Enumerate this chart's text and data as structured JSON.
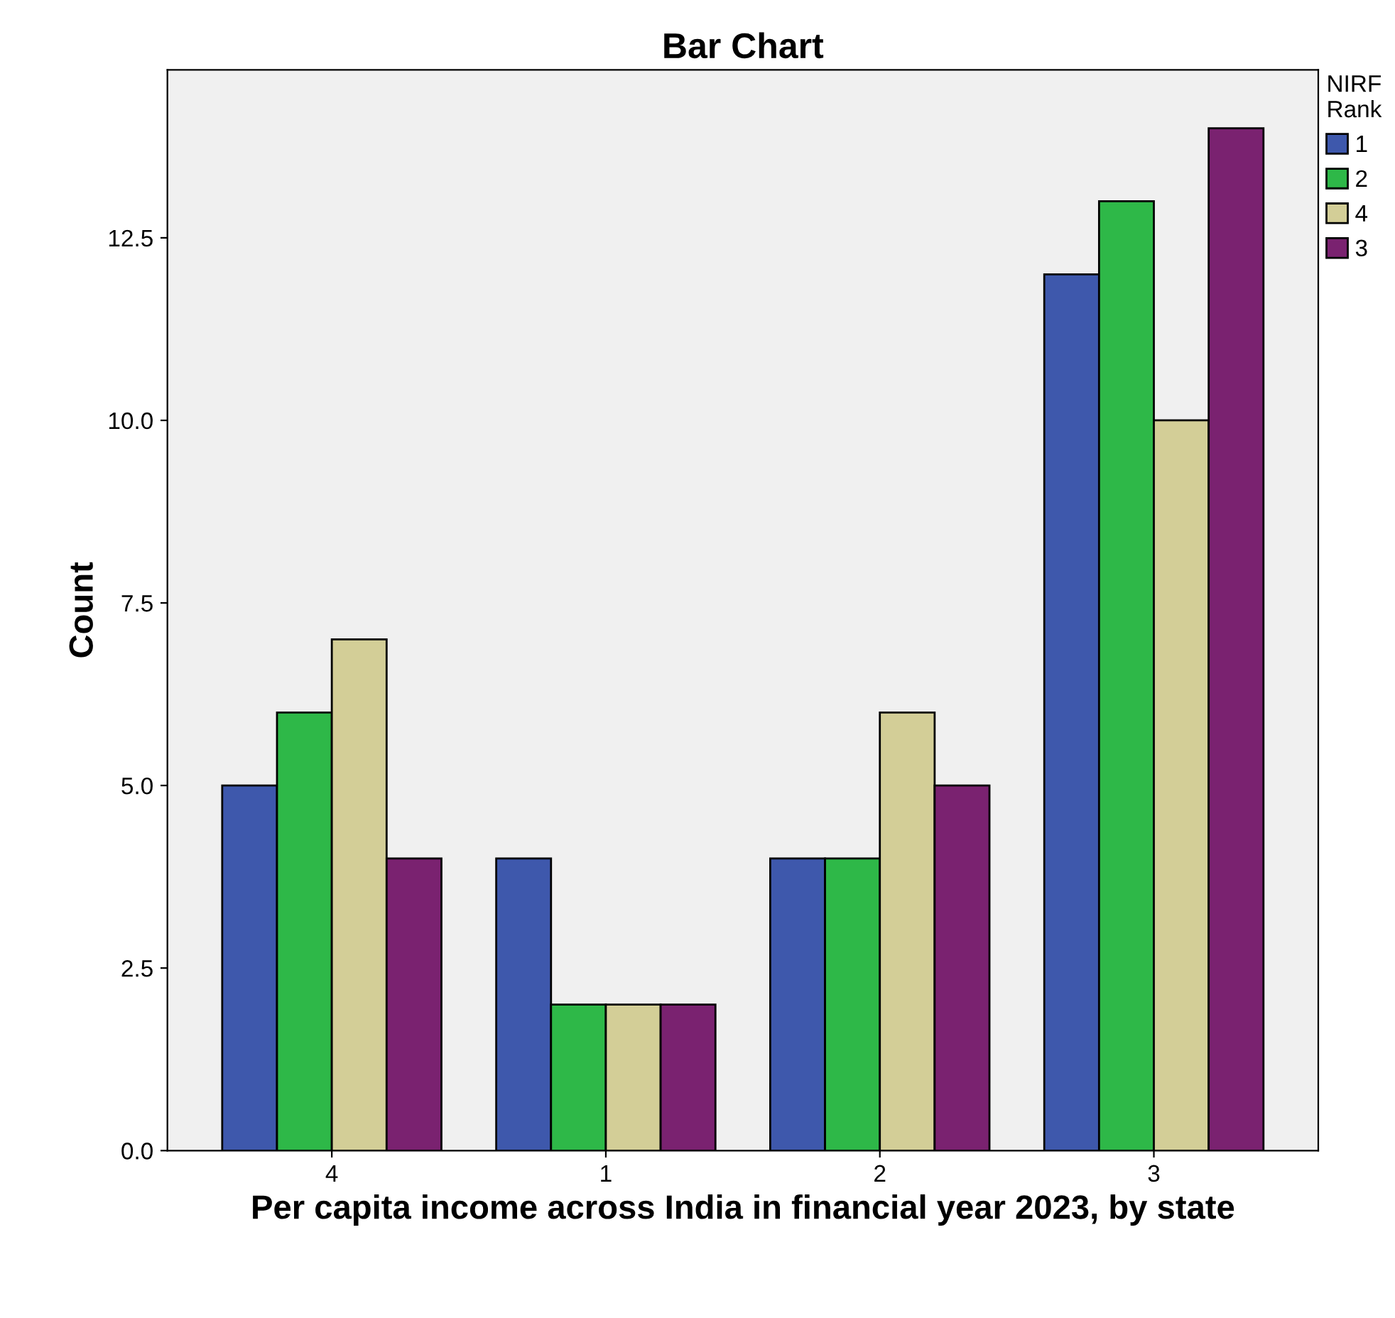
{
  "chart_data": {
    "type": "bar",
    "title": "Bar Chart",
    "xlabel": "Per capita income across India in financial year 2023, by state",
    "ylabel": "Count",
    "legend_title": "NIRF Rank",
    "categories": [
      "4",
      "1",
      "2",
      "3"
    ],
    "series": [
      {
        "name": "1",
        "color": "#3e58ac",
        "values": [
          5,
          4,
          4,
          12
        ]
      },
      {
        "name": "2",
        "color": "#2eb848",
        "values": [
          6,
          2,
          4,
          13
        ]
      },
      {
        "name": "4",
        "color": "#d3ce97",
        "values": [
          7,
          2,
          6,
          10
        ]
      },
      {
        "name": "3",
        "color": "#7a2270",
        "values": [
          4,
          2,
          5,
          14
        ]
      }
    ],
    "ylim": [
      0,
      14.8
    ],
    "yticks": [
      {
        "value": 0,
        "label": "0.0"
      },
      {
        "value": 2.5,
        "label": "2.5"
      },
      {
        "value": 5,
        "label": "5.0"
      },
      {
        "value": 7.5,
        "label": "7.5"
      },
      {
        "value": 10,
        "label": "10.0"
      },
      {
        "value": 12.5,
        "label": "12.5"
      }
    ],
    "grid": false,
    "legend": "right"
  }
}
